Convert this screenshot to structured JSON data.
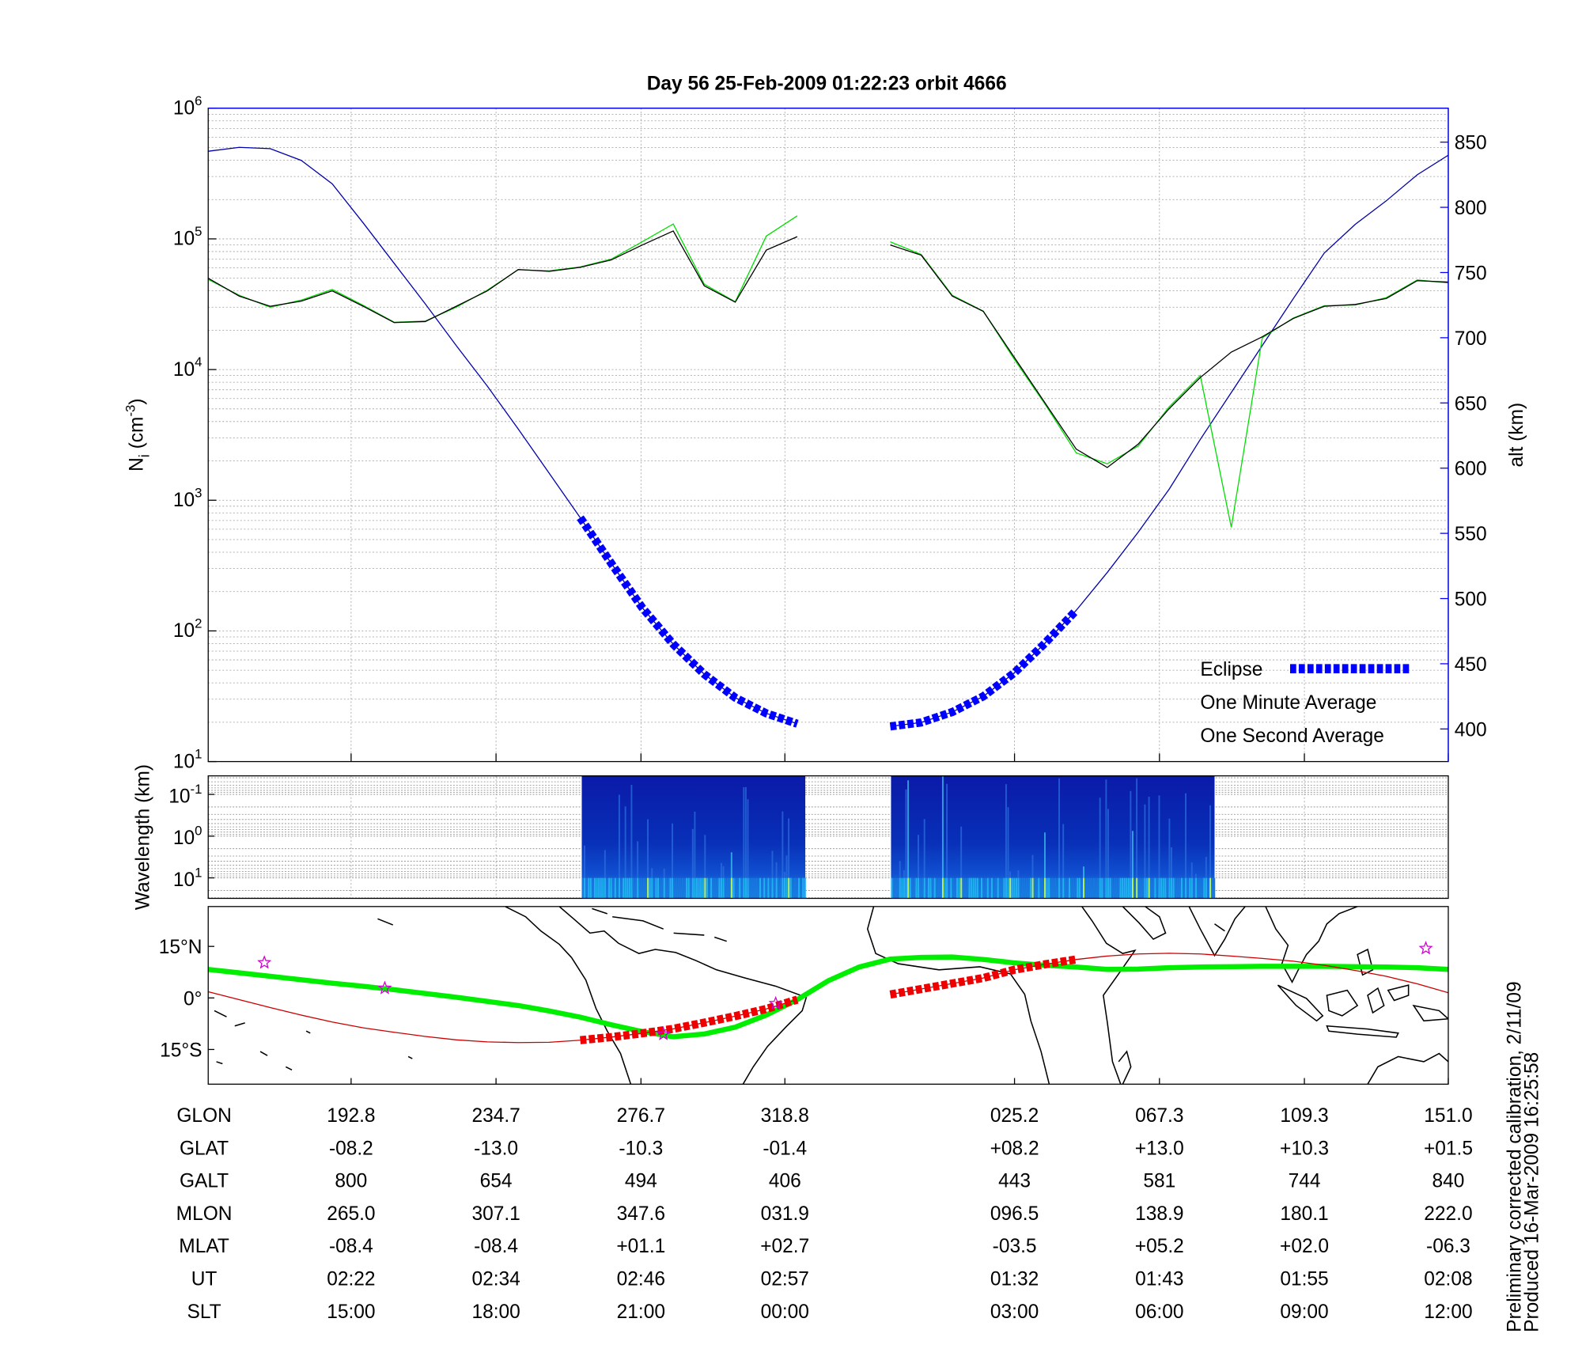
{
  "chart_data": [
    {
      "type": "line",
      "title": "Day 56  25-Feb-2009 01:22:23   orbit 4666",
      "ylabel_parts": [
        "N",
        "i",
        " (cm",
        "-3",
        ")"
      ],
      "y2label": "alt (km)",
      "log_y": true,
      "ylim": [
        10,
        1000000
      ],
      "yticks": [
        {
          "value": 10,
          "label": "10",
          "exp": "1"
        },
        {
          "value": 100,
          "label": "10",
          "exp": "2"
        },
        {
          "value": 1000,
          "label": "10",
          "exp": "3"
        },
        {
          "value": 10000,
          "label": "10",
          "exp": "4"
        },
        {
          "value": 100000,
          "label": "10",
          "exp": "5"
        },
        {
          "value": 1000000,
          "label": "10",
          "exp": "6"
        }
      ],
      "y2lim": [
        375,
        876
      ],
      "y2ticks": [
        400,
        450,
        500,
        550,
        600,
        650,
        700,
        750,
        800,
        850
      ],
      "y2color": "#0000ff",
      "grid": true,
      "minor_grid": true,
      "legend": "lower right",
      "series": [
        {
          "color": "#0000aa",
          "axis": "y2",
          "values": [
            843,
            846,
            845,
            836,
            818,
            788,
            757,
            726,
            694,
            663,
            630,
            596,
            562,
            527,
            493,
            465,
            442,
            424,
            412,
            404,
            null,
            null,
            402,
            405,
            413,
            425,
            443,
            466,
            491,
            520,
            551,
            584,
            622,
            658,
            694,
            730,
            765,
            787,
            805,
            825,
            840
          ]
        },
        {
          "name": "One Second Average",
          "color": "#00dd00",
          "values": [
            49000,
            37000,
            30000,
            34000,
            41000,
            31000,
            23000,
            23500,
            30000,
            40500,
            58000,
            57000,
            61000,
            70000,
            95000,
            130000,
            45000,
            33000,
            105000,
            150000,
            null,
            null,
            95000,
            76000,
            37000,
            28000,
            12000,
            5400,
            2300,
            1900,
            2600,
            5200,
            9000,
            620,
            17500,
            24800,
            30800,
            31200,
            35500,
            48500,
            46000
          ]
        },
        {
          "name": "One Minute Average",
          "color": "#000000",
          "values": [
            50000,
            36500,
            30500,
            33400,
            40000,
            30500,
            22900,
            23300,
            30500,
            40000,
            58300,
            56400,
            60600,
            69000,
            89800,
            115000,
            43700,
            32800,
            82000,
            104000,
            null,
            null,
            89800,
            75000,
            36500,
            27900,
            12400,
            5520,
            2460,
            1780,
            2690,
            5030,
            8690,
            13600,
            17800,
            24600,
            30500,
            31500,
            35000,
            47900,
            46700
          ]
        },
        {
          "name": "Eclipse",
          "color": "#0000ff",
          "axis": "y2",
          "style": "thick-dashed",
          "values": [
            null,
            null,
            null,
            null,
            null,
            null,
            null,
            null,
            null,
            null,
            null,
            null,
            562,
            527,
            493,
            465,
            442,
            424,
            412,
            404,
            null,
            null,
            402,
            405,
            413,
            425,
            443,
            466,
            491,
            null,
            null,
            null,
            null,
            null,
            null,
            null,
            null,
            null,
            null,
            null,
            null
          ]
        }
      ]
    },
    {
      "type": "spectrogram",
      "ylabel": "Wavelength (km)",
      "log_y": true,
      "y_inverted": true,
      "ylim": [
        0.036,
        31
      ],
      "yticks": [
        {
          "value": 0.1,
          "label": "10",
          "exp": "-1"
        },
        {
          "value": 1,
          "label": "10",
          "exp": "0"
        },
        {
          "value": 10,
          "label": "10",
          "exp": "1"
        }
      ],
      "grid": true
    },
    {
      "type": "map",
      "ylim": [
        -25.1,
        26.6
      ],
      "yticks": [
        {
          "value": 15,
          "label": "15°N"
        },
        {
          "value": 0,
          "label": "0°"
        },
        {
          "value": -15,
          "label": "15°S"
        }
      ],
      "series": [
        {
          "color": "#00ee00",
          "style": "thick",
          "values": [
            8.3,
            7.3,
            6.3,
            5.3,
            4.3,
            3.4,
            2.4,
            1.3,
            0.2,
            -1,
            -2.2,
            -3.8,
            -5.6,
            -7.8,
            -9.8,
            -11.3,
            -10.5,
            -8.5,
            -5,
            -0.5,
            5,
            9,
            11.3,
            11.8,
            11.9,
            11.2,
            10.2,
            9.5,
            9,
            8.3,
            8.4,
            8.8,
            9,
            9.1,
            9.2,
            9.2,
            9.2,
            9.1,
            9,
            8.8,
            8.3
          ]
        },
        {
          "color": "#cc0000",
          "values": [
            1.8,
            -0.5,
            -2.8,
            -5,
            -7,
            -8.7,
            -10,
            -11.2,
            -12.2,
            -12.8,
            -13,
            -12.9,
            -12.3,
            -11.4,
            -10.3,
            -9,
            -7.2,
            -5.3,
            -3.2,
            -0.5,
            null,
            null,
            1,
            2.6,
            4.2,
            5.8,
            8.2,
            9.8,
            11.2,
            12.2,
            12.8,
            13,
            12.8,
            12.2,
            11.5,
            10.7,
            9.5,
            8,
            6.3,
            4.1,
            1.5
          ]
        },
        {
          "color": "#ee0000",
          "style": "thick-dashed",
          "values": [
            null,
            null,
            null,
            null,
            null,
            null,
            null,
            null,
            null,
            null,
            null,
            null,
            -12.3,
            -11.4,
            -10.3,
            -9,
            -7.2,
            -5.3,
            -3.2,
            -0.5,
            null,
            null,
            1,
            2.6,
            4.2,
            5.8,
            8.2,
            9.8,
            11.2,
            null,
            null,
            null,
            null,
            null,
            null,
            null,
            null,
            null,
            null,
            null,
            null
          ]
        }
      ]
    }
  ],
  "table": {
    "rows": [
      [
        "GLON",
        "192.8",
        "234.7",
        "276.7",
        "318.8",
        "025.2",
        "067.3",
        "109.3",
        "151.0"
      ],
      [
        "GLAT",
        "-08.2",
        "-13.0",
        "-10.3",
        "-01.4",
        "+08.2",
        "+13.0",
        "+10.3",
        "+01.5"
      ],
      [
        "GALT",
        "800",
        "654",
        "494",
        "406",
        "443",
        "581",
        "744",
        "840"
      ],
      [
        "MLON",
        "265.0",
        "307.1",
        "347.6",
        "031.9",
        "096.5",
        "138.9",
        "180.1",
        "222.0"
      ],
      [
        "MLAT",
        "-08.4",
        "-08.4",
        "+01.1",
        "+02.7",
        "-03.5",
        "+05.2",
        "+02.0",
        "-06.3"
      ],
      [
        "UT",
        "02:22",
        "02:34",
        "02:46",
        "02:57",
        "01:32",
        "01:43",
        "01:55",
        "02:08"
      ],
      [
        "SLT",
        "15:00",
        "18:00",
        "21:00",
        "00:00",
        "03:00",
        "06:00",
        "09:00",
        "12:00"
      ]
    ]
  },
  "notes": [
    "Preliminary corrected calibration, 2/11/09",
    "Produced 16-Mar-2009 16:25:58"
  ]
}
